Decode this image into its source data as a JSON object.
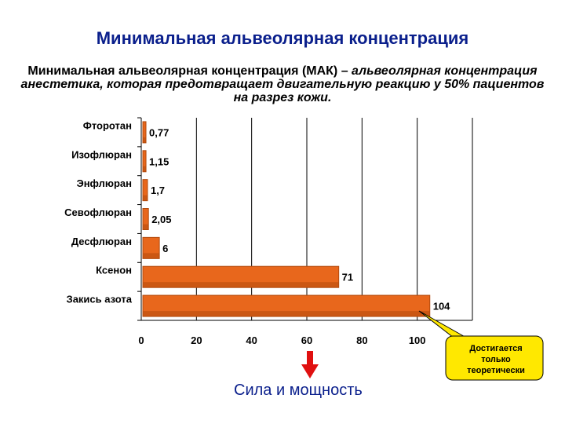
{
  "slide": {
    "title": "Минимальная альвеолярная концентрация",
    "subtitle_plain": "Минимальная альвеолярная концентрация (МАК) – ",
    "subtitle_italic": "альвеолярная концентрация анестетика, которая предотвращает двигательную реакцию у 50% пациентов на разрез кожи.",
    "footer_label": "Сила и мощность",
    "callout": "Достигается только теоретически"
  },
  "colors": {
    "title": "#0a1f8c",
    "bar_fill": "#e8671c",
    "bar_dark": "#b24a0d",
    "arrow": "#e01010",
    "callout_fill": "#ffe800"
  },
  "chart_data": {
    "type": "bar",
    "orientation": "horizontal",
    "categories": [
      "Фторотан",
      "Изофлюран",
      "Энфлюран",
      "Севофлюран",
      "Десфлюран",
      "Ксенон",
      "Закись азота"
    ],
    "values": [
      0.77,
      1.15,
      1.7,
      2.05,
      6,
      71,
      104
    ],
    "value_labels": [
      "0,77",
      "1,15",
      "1,7",
      "2,05",
      "6",
      "71",
      "104"
    ],
    "xlim": [
      0,
      120
    ],
    "xticks": [
      0,
      20,
      40,
      60,
      80,
      100
    ],
    "grid": "vertical"
  }
}
